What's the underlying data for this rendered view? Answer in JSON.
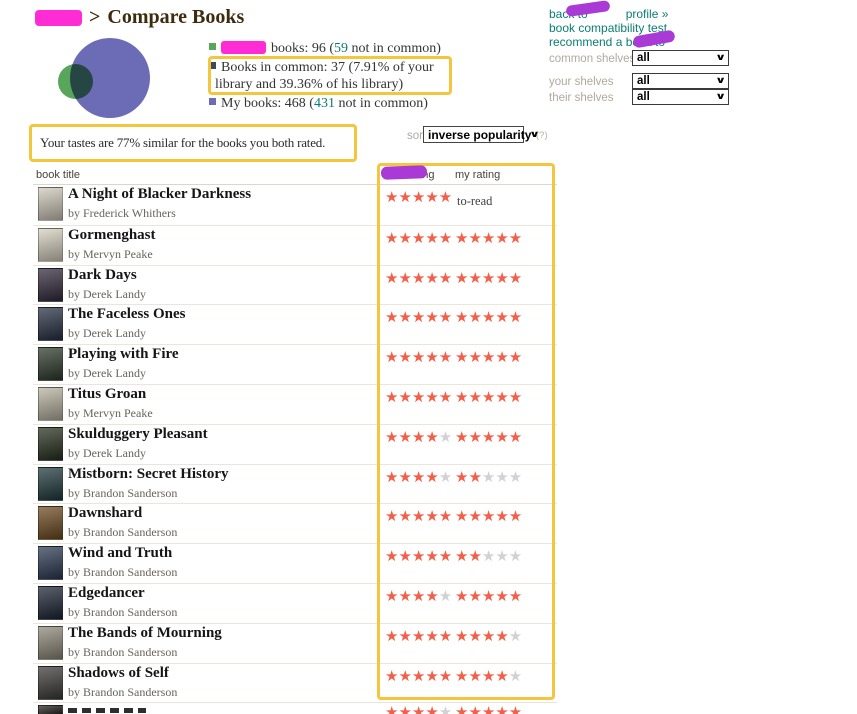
{
  "breadcrumb": {
    "separator": ">",
    "title": "Compare Books"
  },
  "links": {
    "back_prefix": "back to",
    "back_suffix": "profile »",
    "compatibility": "book compatibility test",
    "recommend": "recommend a book to"
  },
  "shelf_filters": [
    {
      "label": "common shelves",
      "value": "all"
    },
    {
      "label": "your shelves",
      "value": "all"
    },
    {
      "label": "their shelves",
      "value": "all"
    }
  ],
  "stats": {
    "their_books": {
      "lead": "books: 96 (",
      "not_common": "59",
      "tail": " not in common)"
    },
    "common_line1": "Books in common: 37 (7.91% of your",
    "common_line2": "library and 39.36% of his library)",
    "my_books": {
      "lead": "My books: 468 (",
      "not_common": "431",
      "tail": " not in common)"
    }
  },
  "tastes_message": "Your tastes are 77% similar for the books you both rated.",
  "sort": {
    "label": "sort",
    "value": "inverse popularity",
    "help": "(?)"
  },
  "table": {
    "headers": {
      "book": "book title",
      "their": "rating",
      "mine": "my rating"
    },
    "author_prefix": "by",
    "rows": [
      {
        "title": "A Night of Blacker Darkness",
        "author": "Frederick Whithers",
        "their_stars": 5,
        "my_stars": null,
        "my_shelf": "to-read",
        "cover": "#cfc9ba"
      },
      {
        "title": "Gormenghast",
        "author": "Mervyn Peake",
        "their_stars": 5,
        "my_stars": 5,
        "cover": "#d6d0bf"
      },
      {
        "title": "Dark Days",
        "author": "Derek Landy",
        "their_stars": 5,
        "my_stars": 5,
        "cover": "#332a3d"
      },
      {
        "title": "The Faceless Ones",
        "author": "Derek Landy",
        "their_stars": 5,
        "my_stars": 5,
        "cover": "#273043"
      },
      {
        "title": "Playing with Fire",
        "author": "Derek Landy",
        "their_stars": 5,
        "my_stars": 5,
        "cover": "#2e3a2c"
      },
      {
        "title": "Titus Groan",
        "author": "Mervyn Peake",
        "their_stars": 5,
        "my_stars": 5,
        "cover": "#b8b2a0"
      },
      {
        "title": "Skulduggery Pleasant",
        "author": "Derek Landy",
        "their_stars": 4,
        "my_stars": 5,
        "cover": "#27301f"
      },
      {
        "title": "Mistborn: Secret History",
        "author": "Brandon Sanderson",
        "their_stars": 4,
        "my_stars": 2,
        "cover": "#1f3a3c"
      },
      {
        "title": "Dawnshard",
        "author": "Brandon Sanderson",
        "their_stars": 5,
        "my_stars": 5,
        "cover": "#6e4a20"
      },
      {
        "title": "Wind and Truth",
        "author": "Brandon Sanderson",
        "their_stars": 5,
        "my_stars": 2,
        "cover": "#2b3a52"
      },
      {
        "title": "Edgedancer",
        "author": "Brandon Sanderson",
        "their_stars": 4,
        "my_stars": 5,
        "cover": "#1d2435"
      },
      {
        "title": "The Bands of Mourning",
        "author": "Brandon Sanderson",
        "their_stars": 5,
        "my_stars": 4,
        "cover": "#8e8878"
      },
      {
        "title": "Shadows of Self",
        "author": "Brandon Sanderson",
        "their_stars": 5,
        "my_stars": 4,
        "cover": "#3c3a38"
      }
    ],
    "partial_row": {
      "their_stars": 4,
      "my_stars": 5,
      "cover": "#2a2424"
    }
  },
  "colors": {
    "annotation-gold": "#f4c63d",
    "redaction-magenta": "#ff2bd4",
    "scribble-purple": "#a93ad6",
    "link-teal": "#0b7d74",
    "star-red": "#f2604a",
    "star-empty": "#d2d2d2",
    "venn-their": "#58a55c",
    "venn-my": "#6b6cb5",
    "bullet-common": "#3d4a5e",
    "heading-brown": "#3e2b0e"
  }
}
